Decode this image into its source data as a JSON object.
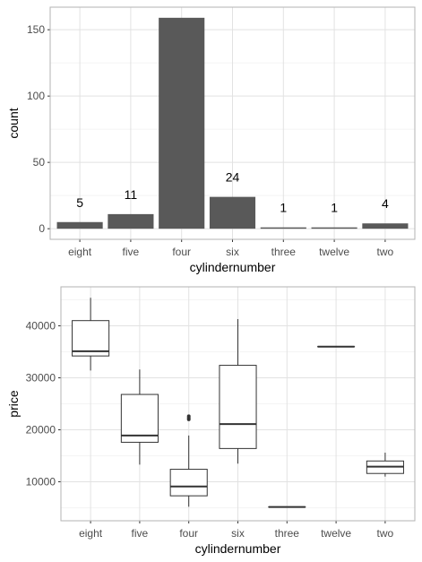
{
  "chart_data": [
    {
      "type": "bar",
      "categories": [
        "eight",
        "five",
        "four",
        "six",
        "three",
        "twelve",
        "two"
      ],
      "values": [
        5,
        11,
        159,
        24,
        1,
        1,
        4
      ],
      "data_labels": [
        "5",
        "11",
        "",
        "24",
        "1",
        "1",
        "4"
      ],
      "xlabel": "cylindernumber",
      "ylabel": "count",
      "ylim": [
        -8,
        167
      ],
      "yticks": [
        0,
        50,
        100,
        150
      ],
      "ytick_labels": [
        "0",
        "50",
        "100",
        "150"
      ],
      "grid": true,
      "bar_color": "#595959"
    },
    {
      "type": "box",
      "categories": [
        "eight",
        "five",
        "four",
        "six",
        "three",
        "twelve",
        "two"
      ],
      "boxes": [
        {
          "whisker_low": 31400,
          "q1": 34200,
          "median": 35100,
          "q3": 41000,
          "whisker_high": 45400,
          "outliers": []
        },
        {
          "whisker_low": 13300,
          "q1": 17600,
          "median": 18900,
          "q3": 26800,
          "whisker_high": 31600,
          "outliers": []
        },
        {
          "whisker_low": 5200,
          "q1": 7300,
          "median": 9100,
          "q3": 12400,
          "whisker_high": 18900,
          "outliers": [
            22000,
            22300,
            22600
          ]
        },
        {
          "whisker_low": 13500,
          "q1": 16400,
          "median": 21100,
          "q3": 32400,
          "whisker_high": 41300,
          "outliers": []
        },
        {
          "whisker_low": 5151,
          "q1": 5151,
          "median": 5151,
          "q3": 5151,
          "whisker_high": 5151,
          "outliers": []
        },
        {
          "whisker_low": 36000,
          "q1": 36000,
          "median": 36000,
          "q3": 36000,
          "whisker_high": 36000,
          "outliers": []
        },
        {
          "whisker_low": 11000,
          "q1": 11600,
          "median": 12900,
          "q3": 14000,
          "whisker_high": 15600,
          "outliers": []
        }
      ],
      "xlabel": "cylindernumber",
      "ylabel": "price",
      "ylim": [
        2500,
        47500
      ],
      "yticks": [
        10000,
        20000,
        30000,
        40000
      ],
      "ytick_labels": [
        "10000",
        "20000",
        "30000",
        "40000"
      ],
      "grid": true,
      "box_fill": "#ffffff",
      "line_color": "#333333",
      "outlier_color": "#333333"
    }
  ]
}
